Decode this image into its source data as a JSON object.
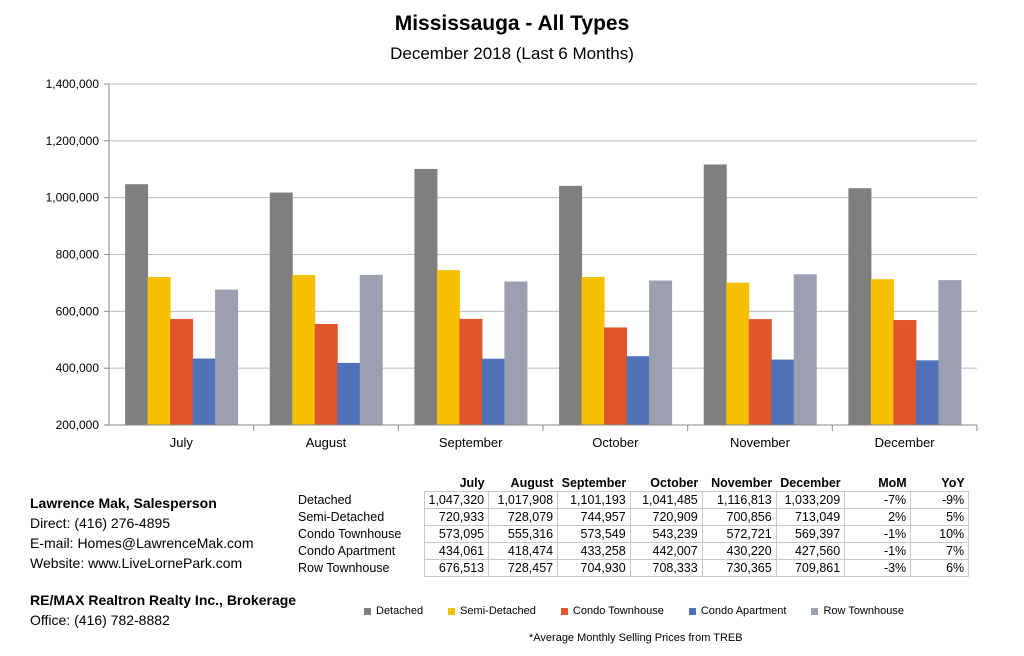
{
  "chart_data": {
    "type": "bar",
    "title": "Mississauga - All Types",
    "subtitle": "December 2018 (Last 6 Months)",
    "categories": [
      "July",
      "August",
      "September",
      "October",
      "November",
      "December"
    ],
    "ylim": [
      200000,
      1400000
    ],
    "yticks": [
      "200,000",
      "400,000",
      "600,000",
      "800,000",
      "1,000,000",
      "1,200,000",
      "1,400,000"
    ],
    "grid": true,
    "legend_position": "bottom",
    "series": [
      {
        "name": "Detached",
        "color": "#7f7f7f",
        "values": [
          1047320,
          1017908,
          1101193,
          1041485,
          1116813,
          1033209
        ]
      },
      {
        "name": "Semi-Detached",
        "color": "#f5c000",
        "values": [
          720933,
          728079,
          744957,
          720909,
          700856,
          713049
        ]
      },
      {
        "name": "Condo Townhouse",
        "color": "#e0562a",
        "values": [
          573095,
          555316,
          573549,
          543239,
          572721,
          569397
        ]
      },
      {
        "name": "Condo Apartment",
        "color": "#4f72b8",
        "values": [
          434061,
          418474,
          433258,
          442007,
          430220,
          427560
        ]
      },
      {
        "name": "Row Townhouse",
        "color": "#9b9fb0",
        "values": [
          676513,
          728457,
          704930,
          708333,
          730365,
          709861
        ]
      }
    ]
  },
  "table": {
    "headers": [
      "July",
      "August",
      "September",
      "October",
      "November",
      "December",
      "MoM",
      "YoY"
    ],
    "rows": [
      {
        "label": "Detached",
        "cells": [
          "1,047,320",
          "1,017,908",
          "1,101,193",
          "1,041,485",
          "1,116,813",
          "1,033,209",
          "-7%",
          "-9%"
        ]
      },
      {
        "label": "Semi-Detached",
        "cells": [
          "720,933",
          "728,079",
          "744,957",
          "720,909",
          "700,856",
          "713,049",
          "2%",
          "5%"
        ]
      },
      {
        "label": "Condo Townhouse",
        "cells": [
          "573,095",
          "555,316",
          "573,549",
          "543,239",
          "572,721",
          "569,397",
          "-1%",
          "10%"
        ]
      },
      {
        "label": "Condo Apartment",
        "cells": [
          "434,061",
          "418,474",
          "433,258",
          "442,007",
          "430,220",
          "427,560",
          "-1%",
          "7%"
        ]
      },
      {
        "label": "Row Townhouse",
        "cells": [
          "676,513",
          "728,457",
          "704,930",
          "708,333",
          "730,365",
          "709,861",
          "-3%",
          "6%"
        ]
      }
    ]
  },
  "contact": {
    "name": "Lawrence Mak, Salesperson",
    "direct": "Direct:  (416) 276-4895",
    "email": "E-mail:  Homes@LawrenceMak.com",
    "website": "Website: www.LiveLornePark.com",
    "brokerage": "RE/MAX Realtron Realty Inc., Brokerage",
    "office": "Office: (416) 782-8882"
  },
  "footnote": "*Average Monthly Selling Prices  from TREB"
}
